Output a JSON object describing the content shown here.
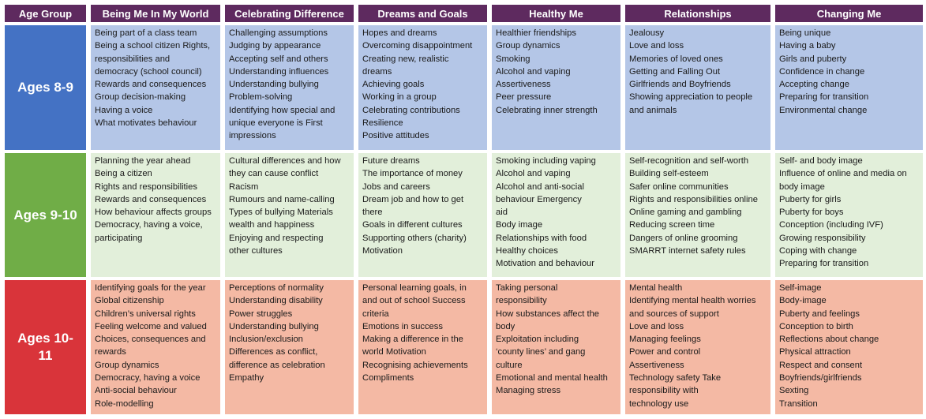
{
  "headers": [
    "Age Group",
    "Being Me In My World",
    "Celebrating Difference",
    "Dreams and Goals",
    "Healthy Me",
    "Relationships",
    "Changing Me"
  ],
  "rows": [
    {
      "age": "Ages 8-9",
      "cells": [
        [
          "Being part of a class team",
          "Being a school citizen Rights,",
          "responsibilities and",
          "democracy (school council)",
          "Rewards and consequences",
          "Group decision-making",
          "Having a voice",
          "What motivates behaviour"
        ],
        [
          "Challenging assumptions",
          "Judging by appearance",
          "Accepting self and others",
          "Understanding influences",
          "Understanding bullying",
          "Problem-solving",
          "Identifying how special and",
          "unique everyone is First",
          "impressions"
        ],
        [
          "Hopes and dreams",
          "Overcoming disappointment",
          "Creating new, realistic",
          "dreams",
          "Achieving goals",
          "Working in a group",
          "Celebrating contributions",
          "Resilience",
          "Positive attitudes"
        ],
        [
          "Healthier friendships",
          "Group dynamics",
          "Smoking",
          "Alcohol and vaping",
          "Assertiveness",
          "Peer pressure",
          "Celebrating inner strength"
        ],
        [
          "Jealousy",
          "Love and loss",
          "Memories of loved ones",
          "Getting and Falling Out",
          "Girlfriends and Boyfriends",
          "Showing appreciation to people",
          "and animals"
        ],
        [
          "Being unique",
          "Having a baby",
          "Girls and puberty",
          "Confidence in change",
          "Accepting change",
          "Preparing for transition",
          "Environmental change"
        ]
      ]
    },
    {
      "age": "Ages 9-10",
      "cells": [
        [
          "Planning the year ahead",
          "Being a citizen",
          "Rights and responsibilities",
          "Rewards and consequences",
          "How behaviour affects groups",
          "Democracy, having a voice,",
          "participating"
        ],
        [
          "Cultural differences and how",
          "they can cause conflict",
          "Racism",
          "Rumours and name-calling",
          "Types of bullying Materials",
          "wealth and happiness",
          "Enjoying and respecting",
          "other cultures"
        ],
        [
          "Future dreams",
          "The importance of money",
          "Jobs and careers",
          "Dream job and how to get",
          "there",
          "Goals in different cultures",
          "Supporting others (charity)",
          "Motivation"
        ],
        [
          "Smoking including vaping",
          "Alcohol and vaping",
          "Alcohol and anti-social",
          "behaviour Emergency",
          "aid",
          "Body image",
          "Relationships with food",
          "Healthy choices",
          "Motivation and behaviour"
        ],
        [
          "Self-recognition and self-worth",
          "Building self-esteem",
          "Safer online communities",
          "Rights and responsibilities online",
          "Online gaming and gambling",
          "Reducing screen time",
          "Dangers of online grooming",
          "SMARRT internet safety rules"
        ],
        [
          "Self- and body image",
          "Influence of online and media on",
          "body image",
          "Puberty for girls",
          "Puberty for boys",
          "Conception (including IVF)",
          "Growing responsibility",
          "Coping with change",
          "Preparing for transition"
        ]
      ]
    },
    {
      "age": "Ages 10-11",
      "cells": [
        [
          "Identifying goals for the year",
          "Global citizenship",
          "Children’s universal rights",
          "Feeling welcome and valued",
          "Choices, consequences and",
          "rewards",
          "Group dynamics",
          "Democracy, having a voice",
          "Anti-social behaviour",
          "Role-modelling"
        ],
        [
          "Perceptions of normality",
          "Understanding disability",
          "Power struggles",
          "Understanding bullying",
          "Inclusion/exclusion",
          "Differences as conflict,",
          "difference as celebration",
          "Empathy"
        ],
        [
          "Personal learning goals, in",
          "and out of school Success",
          "criteria",
          "Emotions in success",
          "Making a difference in the",
          "world Motivation",
          "Recognising achievements",
          "Compliments"
        ],
        [
          "Taking personal",
          "responsibility",
          "How substances affect the",
          "body",
          "Exploitation including",
          "‘county lines’ and gang",
          "culture",
          "Emotional and mental health",
          "Managing stress"
        ],
        [
          "Mental health",
          "Identifying mental health worries",
          "and sources of support",
          "Love and loss",
          "Managing feelings",
          "Power and control",
          "Assertiveness",
          "Technology safety  Take",
          "responsibility with",
          "technology use"
        ],
        [
          "Self-image",
          "Body-image",
          "Puberty and feelings",
          "Conception to birth",
          "Reflections about change",
          "Physical attraction",
          "Respect and consent",
          "Boyfriends/girlfriends",
          "Sexting",
          "Transition"
        ]
      ]
    }
  ],
  "colors": {
    "header_bg": "#5e2a5f",
    "age_8_9": "#4472c4",
    "age_9_10": "#70ad47",
    "age_10_11": "#d9343a",
    "cell_8_9": "#b4c6e7",
    "cell_9_10": "#e2efda",
    "cell_10_11": "#f4b9a4"
  }
}
